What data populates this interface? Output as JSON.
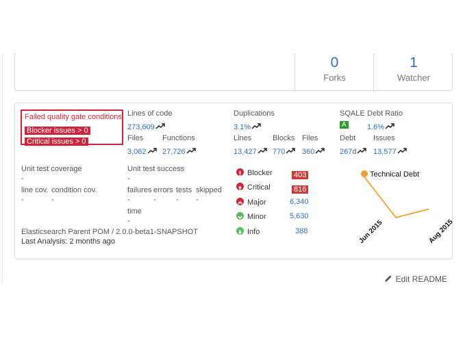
{
  "stats": {
    "forks": {
      "value": "0",
      "label": "Forks"
    },
    "watchers": {
      "value": "1",
      "label": "Watcher"
    }
  },
  "quality_gate": {
    "title": "Failed quality gate conditions:",
    "conditions": [
      "Blocker issues > 0",
      "Critical issues > 0"
    ]
  },
  "metrics": {
    "lines_of_code": {
      "label": "Lines of code",
      "value": "273,609"
    },
    "files": {
      "label": "Files",
      "value": "3,062"
    },
    "functions": {
      "label": "Functions",
      "value": "27,726"
    },
    "duplications": {
      "label": "Duplications",
      "value": "3.1%"
    },
    "dup_lines": {
      "label": "Lines",
      "value": "13,427"
    },
    "dup_blocks": {
      "label": "Blocks",
      "value": "770"
    },
    "dup_files": {
      "label": "Files",
      "value": "360"
    },
    "sqale": {
      "label": "SQALE",
      "rating": "A"
    },
    "debt_ratio": {
      "label": "Debt Ratio",
      "value": "1.6%"
    },
    "debt": {
      "label": "Debt",
      "value": "267d"
    },
    "issues": {
      "label": "Issues",
      "value": "13,577"
    }
  },
  "tests": {
    "coverage_label": "Unit test coverage",
    "coverage_value": "-",
    "line_cov_label": "line cov.",
    "line_cov_value": "-",
    "condition_cov_label": "condition cov.",
    "condition_cov_value": "-",
    "success_label": "Unit test success",
    "success_value": "-",
    "failures_label": "failures",
    "failures_value": "-",
    "errors_label": "errors",
    "errors_value": "-",
    "tests_label": "tests",
    "tests_value": "-",
    "skipped_label": "skipped",
    "skipped_value": "-",
    "time_label": "time",
    "time_value": "-"
  },
  "project": {
    "name": "Elasticsearch Parent POM / 2.0.0-beta1-SNAPSHOT",
    "last_analysis": "Last Analysis: 2 months ago"
  },
  "severities": [
    {
      "label": "Blocker",
      "count": "403",
      "icon": "exclamation-icon",
      "color": "#d0243a",
      "highlight": true
    },
    {
      "label": "Critical",
      "count": "816",
      "icon": "arrow-up-icon",
      "color": "#d0243a",
      "highlight": true
    },
    {
      "label": "Major",
      "count": "6,340",
      "icon": "chevron-up-icon",
      "color": "#d0243a",
      "highlight": false
    },
    {
      "label": "Minor",
      "count": "5,630",
      "icon": "chevron-down-icon",
      "color": "#5cb85c",
      "highlight": false
    },
    {
      "label": "Info",
      "count": "388",
      "icon": "arrow-down-icon",
      "color": "#5cb85c",
      "highlight": false
    }
  ],
  "chart_data": {
    "type": "line",
    "series": [
      {
        "name": "Technical Debt",
        "color": "#f0a030",
        "points": [
          1.0,
          0.0,
          0.2
        ]
      }
    ],
    "x_ticks": [
      "Jun 2015",
      "Aug 2015"
    ],
    "legend_position": "top"
  },
  "actions": {
    "edit_readme": "Edit README"
  },
  "colors": {
    "link": "#3070b8",
    "alert": "#d0243a",
    "ok": "#2c9a2c"
  }
}
